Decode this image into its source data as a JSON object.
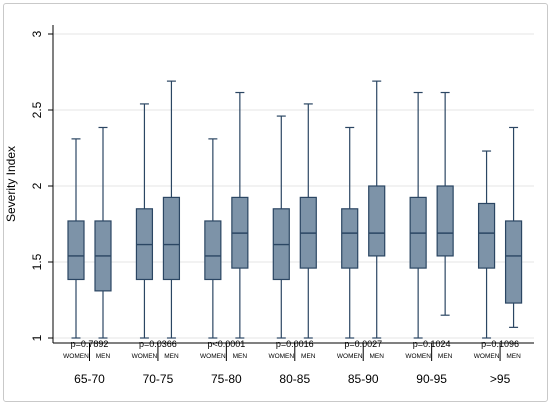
{
  "chart_data": {
    "type": "box",
    "ylabel": "Severity Index",
    "ylim": [
      1,
      3
    ],
    "yticks": [
      "1",
      "1.5",
      "2",
      "2.5",
      "3"
    ],
    "ytick_values": [
      1,
      1.5,
      2,
      2.5,
      3
    ],
    "colors": {
      "box_fill": "#7d93a8",
      "box_stroke": "#2b4663",
      "whisker": "#2b4663",
      "axis": "#000000",
      "grid": "#e6e6e6"
    },
    "sub_labels": [
      "WOMEN",
      "MEN"
    ],
    "groups": [
      {
        "label": "65-70",
        "p": "p=0.7892",
        "women": {
          "min": 1.0,
          "q1": 1.385,
          "median": 1.54,
          "q3": 1.77,
          "max": 2.31
        },
        "men": {
          "min": 1.0,
          "q1": 1.31,
          "median": 1.54,
          "q3": 1.77,
          "max": 2.385
        }
      },
      {
        "label": "70-75",
        "p": "p=0.0366",
        "women": {
          "min": 1.0,
          "q1": 1.385,
          "median": 1.615,
          "q3": 1.85,
          "max": 2.54
        },
        "men": {
          "min": 1.0,
          "q1": 1.385,
          "median": 1.615,
          "q3": 1.925,
          "max": 2.69
        }
      },
      {
        "label": "75-80",
        "p": "p<0.0001",
        "women": {
          "min": 1.0,
          "q1": 1.385,
          "median": 1.54,
          "q3": 1.77,
          "max": 2.31
        },
        "men": {
          "min": 1.0,
          "q1": 1.46,
          "median": 1.69,
          "q3": 1.925,
          "max": 2.615
        }
      },
      {
        "label": "80-85",
        "p": "p=0.0016",
        "women": {
          "min": 1.0,
          "q1": 1.385,
          "median": 1.615,
          "q3": 1.85,
          "max": 2.46
        },
        "men": {
          "min": 1.0,
          "q1": 1.46,
          "median": 1.69,
          "q3": 1.925,
          "max": 2.54
        }
      },
      {
        "label": "85-90",
        "p": "p=0.0027",
        "women": {
          "min": 1.0,
          "q1": 1.46,
          "median": 1.69,
          "q3": 1.85,
          "max": 2.385
        },
        "men": {
          "min": 1.0,
          "q1": 1.54,
          "median": 1.69,
          "q3": 2.0,
          "max": 2.69
        }
      },
      {
        "label": "90-95",
        "p": "p=0.1024",
        "women": {
          "min": 1.0,
          "q1": 1.46,
          "median": 1.69,
          "q3": 1.925,
          "max": 2.615
        },
        "men": {
          "min": 1.15,
          "q1": 1.54,
          "median": 1.69,
          "q3": 2.0,
          "max": 2.615
        }
      },
      {
        "label": ">95",
        "p": "p=0.1096",
        "women": {
          "min": 1.0,
          "q1": 1.46,
          "median": 1.69,
          "q3": 1.885,
          "max": 2.23
        },
        "men": {
          "min": 1.07,
          "q1": 1.23,
          "median": 1.54,
          "q3": 1.77,
          "max": 2.385
        }
      }
    ]
  }
}
